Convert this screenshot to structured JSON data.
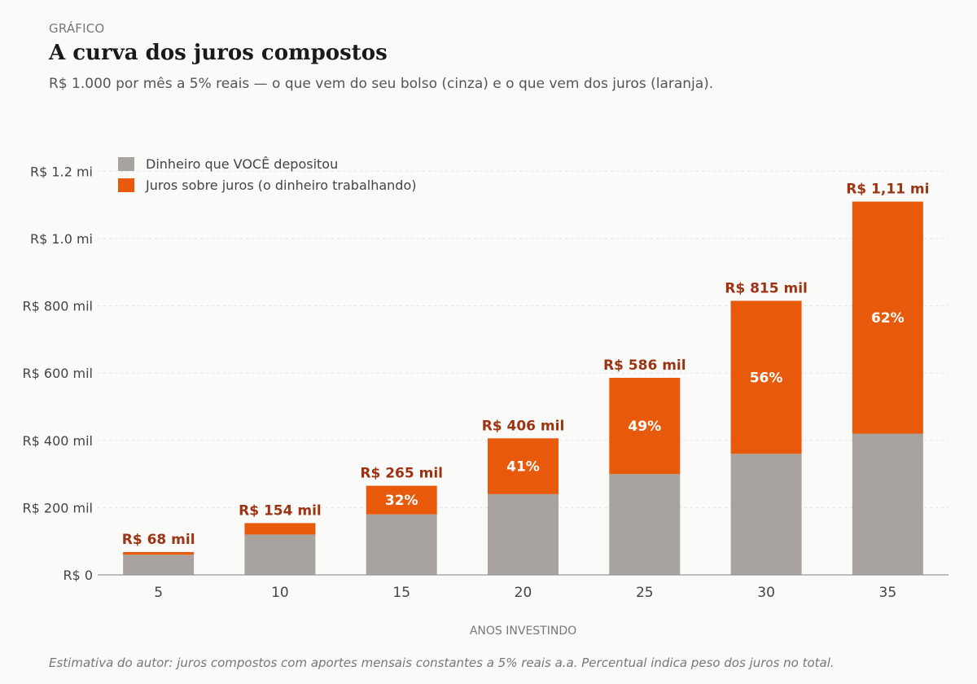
{
  "header": {
    "kicker": "GRÁFICO",
    "title": "A curva dos juros compostos",
    "subtitle": "R$ 1.000 por mês a 5% reais — o que vem do seu bolso (cinza) e o que vem dos juros (laranja)."
  },
  "footer": {
    "source": "Estimativa do autor: juros compostos com aportes mensais constantes a 5% reais a.a. Percentual indica peso dos juros no total."
  },
  "colors": {
    "deposited": "#a8a39e",
    "interest": "#e8590c",
    "total_label": "#9c3414",
    "pct_label": "#ffffff",
    "axis_text": "#444444",
    "grid": "#e6e3de"
  },
  "chart_data": {
    "type": "bar",
    "stacked": true,
    "categories": [
      "5",
      "10",
      "15",
      "20",
      "25",
      "30",
      "35"
    ],
    "series": [
      {
        "name": "Dinheiro que VOCÊ depositou",
        "values": [
          60000,
          120000,
          180000,
          240000,
          300000,
          360000,
          420000
        ]
      },
      {
        "name": "Juros sobre juros (o dinheiro trabalhando)",
        "values": [
          8000,
          34000,
          85000,
          166000,
          286000,
          455000,
          690000
        ]
      }
    ],
    "total_labels": [
      "R$ 68 mil",
      "R$ 154 mil",
      "R$ 265 mil",
      "R$ 406 mil",
      "R$ 586 mil",
      "R$ 815 mil",
      "R$ 1,11 mi"
    ],
    "pct_labels": [
      "",
      "",
      "32%",
      "41%",
      "49%",
      "56%",
      "62%"
    ],
    "xlabel": "ANOS INVESTINDO",
    "ylabel": "",
    "ylim": [
      0,
      1250000
    ],
    "yticks": [
      0,
      200000,
      400000,
      600000,
      800000,
      1000000,
      1200000
    ],
    "ytick_labels": [
      "R$ 0",
      "R$ 200 mil",
      "R$ 400 mil",
      "R$ 600 mil",
      "R$ 800 mil",
      "R$ 1.0 mi",
      "R$ 1.2 mi"
    ],
    "grid": true,
    "legend_position": "top-left"
  }
}
